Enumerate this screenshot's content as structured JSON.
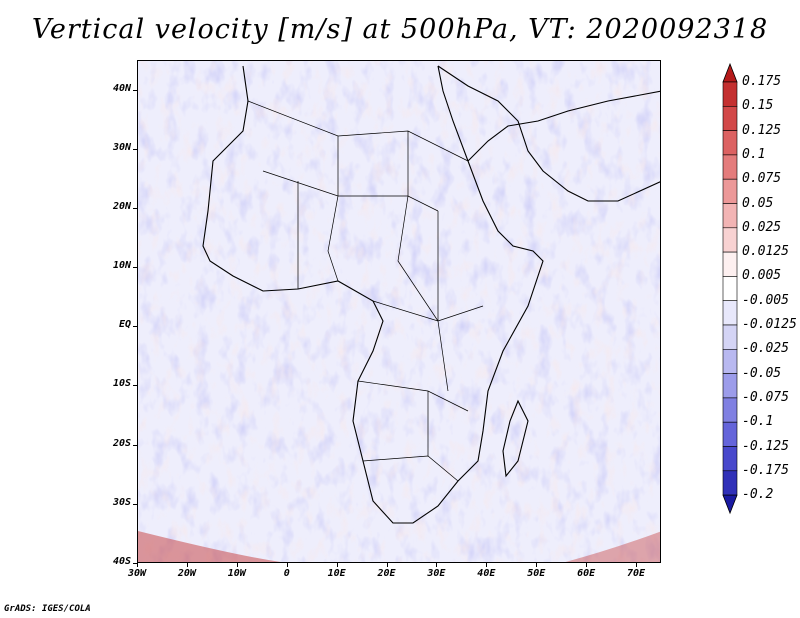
{
  "title": "Vertical velocity [m/s] at 500hPa, VT: 2020092318",
  "footer": "GrADS: IGES/COLA",
  "lat_labels": [
    "40N",
    "30N",
    "20N",
    "10N",
    "EQ",
    "10S",
    "20S",
    "30S",
    "40S"
  ],
  "lat_values": [
    40,
    30,
    20,
    10,
    0,
    -10,
    -20,
    -30,
    -40
  ],
  "lon_labels": [
    "30W",
    "20W",
    "10W",
    "0",
    "10E",
    "20E",
    "30E",
    "40E",
    "50E",
    "60E",
    "70E"
  ],
  "lon_values": [
    -30,
    -20,
    -10,
    0,
    10,
    20,
    30,
    40,
    50,
    60,
    70
  ],
  "map_extent": {
    "lon_min": -30,
    "lon_max": 75,
    "lat_min": -40,
    "lat_max": 45
  },
  "colorbar": {
    "labels": [
      "0.175",
      "0.15",
      "0.125",
      "0.1",
      "0.075",
      "0.05",
      "0.025",
      "0.0125",
      "0.005",
      "-0.005",
      "-0.0125",
      "-0.025",
      "-0.05",
      "-0.075",
      "-0.1",
      "-0.125",
      "-0.175",
      "-0.2"
    ],
    "colors": [
      "#b51a1a",
      "#c43030",
      "#d24848",
      "#dc6262",
      "#e47c7c",
      "#ec9898",
      "#f2b4b4",
      "#f8d2d2",
      "#fdf0f0",
      "#ffffff",
      "#e8e8fb",
      "#d4d4f5",
      "#b8b8f0",
      "#9c9cea",
      "#8080e2",
      "#6464da",
      "#4848cc",
      "#3030b8",
      "#1a1aa2"
    ]
  }
}
